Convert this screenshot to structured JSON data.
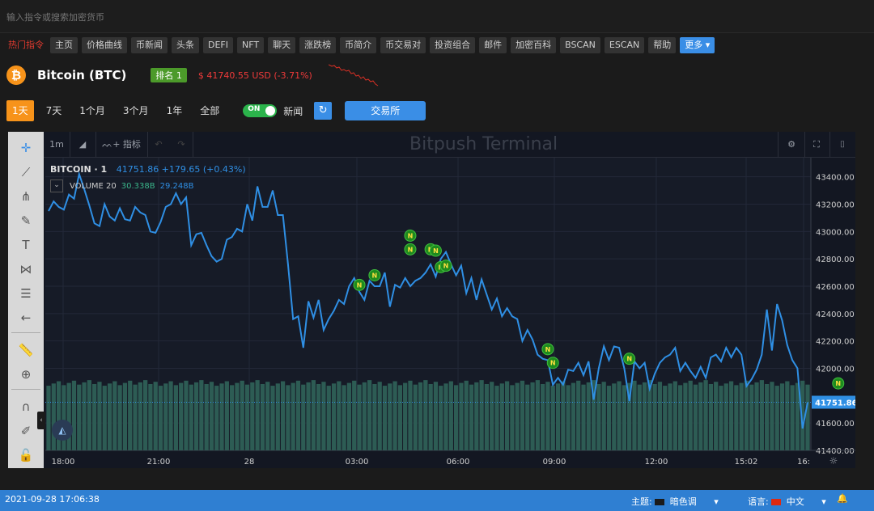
{
  "command_bar": {
    "placeholder": "输入指令或搜索加密货币"
  },
  "nav": {
    "hot_label": "热门指令",
    "items": [
      "主页",
      "价格曲线",
      "币新闻",
      "头条",
      "DEFI",
      "NFT",
      "聊天",
      "涨跌榜",
      "币简介",
      "币交易对",
      "投资组合",
      "邮件",
      "加密百科",
      "BSCAN",
      "ESCAN",
      "帮助"
    ],
    "more_label": "更多 ▾"
  },
  "coin": {
    "logo_glyph": "₿",
    "name": "Bitcoin (BTC)",
    "rank": "排名 1",
    "price": "$ 41740.55 USD (-3.71%)"
  },
  "ranges": {
    "items": [
      "1天",
      "7天",
      "1个月",
      "3个月",
      "1年",
      "全部"
    ],
    "active": 0
  },
  "toggle": {
    "label": "ON",
    "state": "on"
  },
  "news_label": "新闻",
  "refresh_icon": "↻",
  "exchange_label": "交易所",
  "chart_toolbar": {
    "interval": "1m",
    "indicator_label": "指标",
    "watermark": "Bitpush Terminal"
  },
  "legend": {
    "symbol": "BITCOIN · 1",
    "value": "41751.86 +179.65 (+0.43%)",
    "volume_label": "VOLUME 20",
    "volume_value1": "30.338B",
    "volume_value2": "29.248B"
  },
  "chart_data": {
    "type": "line",
    "title": "",
    "xlabel": "",
    "ylabel": "",
    "x_ticks": [
      "18:00",
      "21:00",
      "28",
      "03:00",
      "06:00",
      "09:00",
      "12:00",
      "15:02",
      "16:"
    ],
    "y_ticks": [
      "43400.00",
      "43200.00",
      "43000.00",
      "42800.00",
      "42600.00",
      "42400.00",
      "42200.00",
      "42000.00",
      "41600.00",
      "41400.00"
    ],
    "ylim": [
      41400,
      43540
    ],
    "last_price_label": "41751.86",
    "last_price": 41751.86,
    "line_color": "#2f8fe4",
    "volume_color": "#2d5c54",
    "series": [
      {
        "values": [
          43150,
          43220,
          43180,
          43160,
          43270,
          43240,
          43420,
          43310,
          43190,
          43060,
          43040,
          43200,
          43110,
          43080,
          43170,
          43090,
          43080,
          43180,
          43140,
          43120,
          43000,
          42990,
          43070,
          43180,
          43200,
          43280,
          43200,
          43250,
          42900,
          42980,
          42990,
          42900,
          42820,
          42780,
          42800,
          42940,
          42960,
          43020,
          43000,
          43200,
          43080,
          43330,
          43180,
          43180,
          43300,
          43120,
          43120,
          42760,
          42360,
          42380,
          42150,
          42490,
          42370,
          42500,
          42280,
          42360,
          42420,
          42500,
          42470,
          42600,
          42660,
          42560,
          42500,
          42640,
          42600,
          42600,
          42700,
          42450,
          42610,
          42590,
          42660,
          42600,
          42640,
          42660,
          42700,
          42760,
          42670,
          42800,
          42850,
          42760,
          42680,
          42750,
          42550,
          42660,
          42500,
          42650,
          42540,
          42430,
          42510,
          42380,
          42440,
          42380,
          42360,
          42200,
          42280,
          42210,
          42100,
          42070,
          42060,
          41880,
          41930,
          41880,
          41990,
          41980,
          42040,
          41950,
          42050,
          41770,
          42000,
          42160,
          42060,
          42160,
          42150,
          42000,
          41760,
          42050,
          42000,
          42040,
          41850,
          41960,
          42040,
          42080,
          42100,
          42150,
          41980,
          42040,
          41980,
          41930,
          42010,
          41930,
          42080,
          42100,
          42050,
          42150,
          42080,
          42150,
          42100,
          41870,
          41920,
          41990,
          42100,
          42430,
          42130,
          42470,
          42350,
          42170,
          42060,
          42000,
          41560,
          41750
        ]
      }
    ],
    "volume_ratio": 0.24,
    "news_markers": [
      {
        "idx": 61,
        "price": 42610
      },
      {
        "idx": 64,
        "price": 42680
      },
      {
        "idx": 71,
        "price": 42970
      },
      {
        "idx": 71,
        "price": 42870
      },
      {
        "idx": 75,
        "price": 42870
      },
      {
        "idx": 76,
        "price": 42860
      },
      {
        "idx": 77,
        "price": 42740
      },
      {
        "idx": 78,
        "price": 42750
      },
      {
        "idx": 98,
        "price": 42140
      },
      {
        "idx": 99,
        "price": 42040
      },
      {
        "idx": 114,
        "price": 42070
      },
      {
        "idx": 155,
        "price": 41890
      }
    ],
    "news_marker_label": "N"
  },
  "status_bar": {
    "datetime": "2021-09-28 17:06:38",
    "theme_label": "主题:",
    "theme_value": "暗色调",
    "language_label": "语言:",
    "language_value": "中文"
  }
}
